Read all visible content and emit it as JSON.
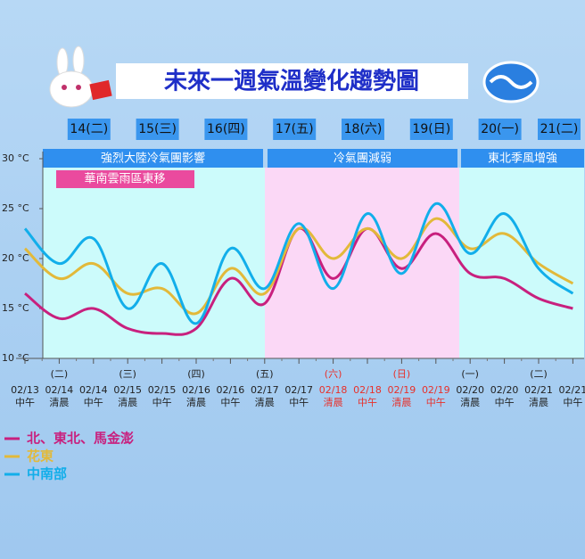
{
  "chart_data": {
    "type": "line",
    "title": "未來一週氣溫變化趨勢圖",
    "day_labels": [
      "14(二)",
      "15(三)",
      "16(四)",
      "17(五)",
      "18(六)",
      "19(日)",
      "20(一)",
      "21(二)"
    ],
    "phases": [
      {
        "label": "強烈大陸冷氣團影響",
        "background": "#ccfbfb"
      },
      {
        "label": "冷氣團減弱",
        "background": "#fbd8f6"
      },
      {
        "label": "東北季風增強",
        "background": "#ccfbfb"
      }
    ],
    "annotation": "華南雲雨區東移",
    "categories": [
      "02/13\n中午",
      "02/14\n清晨",
      "02/14\n中午",
      "02/15\n清晨",
      "02/15\n中午",
      "02/16\n清晨",
      "02/16\n中午",
      "02/17\n清晨",
      "02/17\n中午",
      "02/18\n清晨",
      "02/18\n中午",
      "02/19\n清晨",
      "02/19\n中午",
      "02/20\n清晨",
      "02/20\n中午",
      "02/21\n清晨",
      "02/21\n中午"
    ],
    "category_colors": [
      "#222",
      "#222",
      "#222",
      "#222",
      "#222",
      "#222",
      "#222",
      "#222",
      "#222",
      "#e8302a",
      "#e8302a",
      "#e8302a",
      "#e8302a",
      "#222",
      "#222",
      "#222",
      "#222"
    ],
    "weekday_marks": [
      "(二)",
      "(三)",
      "(四)",
      "(五)",
      "(六)",
      "(日)",
      "(一)",
      "(二)"
    ],
    "series": [
      {
        "name": "北、東北、馬金澎",
        "color": "#c8207e",
        "values": [
          16.5,
          14,
          15,
          13,
          12.5,
          13,
          18,
          15.5,
          23,
          18,
          23,
          19,
          22.5,
          18.5,
          18,
          16,
          15
        ]
      },
      {
        "name": "花東",
        "color": "#e2b93a",
        "values": [
          21,
          18,
          19.5,
          16.5,
          17,
          14.5,
          19,
          16.5,
          23,
          20,
          23,
          20,
          24,
          21,
          22.5,
          19.5,
          17.5
        ]
      },
      {
        "name": "中南部",
        "color": "#12aeea",
        "values": [
          23,
          19.5,
          22,
          15,
          19.5,
          13.5,
          21,
          17,
          23.5,
          17,
          24.5,
          18.5,
          25.5,
          20.5,
          24.5,
          19,
          16.5
        ]
      }
    ],
    "ylim": [
      10,
      30
    ],
    "yticks": [
      {
        "value": 10,
        "label": "10 °C"
      },
      {
        "value": 15,
        "label": "15 °C"
      },
      {
        "value": 20,
        "label": "20 °C"
      },
      {
        "value": 25,
        "label": "25 °C"
      },
      {
        "value": 30,
        "label": "30 °C"
      }
    ]
  }
}
